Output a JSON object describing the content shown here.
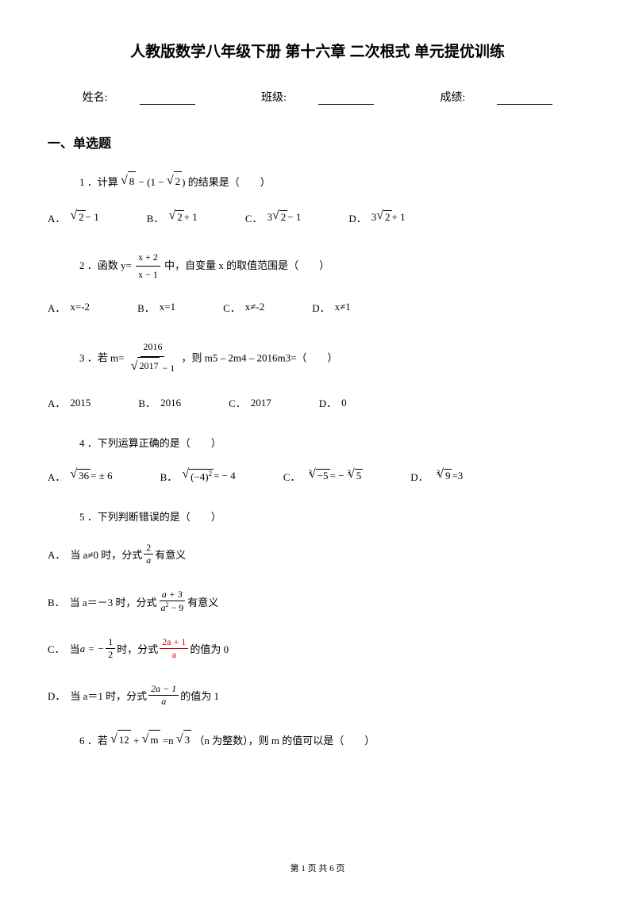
{
  "title": "人教版数学八年级下册 第十六章 二次根式 单元提优训练",
  "info": {
    "name_label": "姓名:",
    "class_label": "班级:",
    "score_label": "成绩:"
  },
  "section1_title": "一、单选题",
  "q1": {
    "prefix": "1 ．计算",
    "suffix": "的结果是（　　）",
    "sqrt_val": "8",
    "paren": "(1 − ",
    "paren_sqrt": "2",
    "paren_close": ")",
    "optA_label": "A．",
    "optA_sqrt": "2",
    "optA_suffix": " − 1",
    "optB_label": "B．",
    "optB_sqrt": "2",
    "optB_suffix": " + 1",
    "optC_label": "C．",
    "optC_prefix": "3",
    "optC_sqrt": "2",
    "optC_suffix": " − 1",
    "optD_label": "D．",
    "optD_prefix": "3",
    "optD_sqrt": "2",
    "optD_suffix": " + 1"
  },
  "q2": {
    "prefix": "2 ．函数 y= ",
    "frac_num": "x + 2",
    "frac_den": "x − 1",
    "suffix": " 中，自变量 x 的取值范围是（　　）",
    "optA_label": "A．",
    "optA": "x=-2",
    "optB_label": "B．",
    "optB": "x=1",
    "optC_label": "C．",
    "optC": "x≠-2",
    "optD_label": "D．",
    "optD": "x≠1"
  },
  "q3": {
    "prefix": "3 ．若 m=",
    "frac_num": "2016",
    "frac_den_sqrt": "2017",
    "frac_den_suffix": " − 1",
    "suffix": "，则 m5 – 2m4 – 2016m3=（　　）",
    "optA_label": "A．",
    "optA": "2015",
    "optB_label": "B．",
    "optB": "2016",
    "optC_label": "C．",
    "optC": "2017",
    "optD_label": "D．",
    "optD": "0"
  },
  "q4": {
    "text": "4 ．下列运算正确的是（　　）",
    "optA_label": "A．",
    "optA_sqrt": "36",
    "optA_suffix": "= ± 6",
    "optB_label": "B．",
    "optB_sqrt": "(−4)",
    "optB_sup": "2",
    "optB_suffix": " = − 4",
    "optC_label": "C．",
    "optC_idx": "3",
    "optC_sqrt": "−5",
    "optC_mid": " = −",
    "optC_idx2": "3",
    "optC_sqrt2": "5",
    "optD_label": "D．",
    "optD_idx": "3",
    "optD_sqrt": "9",
    "optD_suffix": "=3"
  },
  "q5": {
    "text": "5 ．下列判断错误的是（　　）",
    "optA_label": "A．",
    "optA_prefix": "当 a≠0 时，分式",
    "optA_num": "2",
    "optA_den": "a",
    "optA_suffix": "有意义",
    "optB_label": "B．",
    "optB_prefix": "当 a＝－3 时，分式",
    "optB_num": "a + 3",
    "optB_den": "a",
    "optB_den_sup": "2",
    "optB_den_suffix": " − 9",
    "optB_suffix": "有意义",
    "optC_label": "C．",
    "optC_prefix": "当 ",
    "optC_a": "a = −",
    "optC_frac_num": "1",
    "optC_frac_den": "2",
    "optC_mid": "时，分式",
    "optC_num": "2a + 1",
    "optC_den": "a",
    "optC_suffix": " 的值为 0",
    "optD_label": "D．",
    "optD_prefix": "当 a＝1 时，分式 ",
    "optD_num": "2a − 1",
    "optD_den": "a",
    "optD_suffix": "  的值为 1"
  },
  "q6": {
    "prefix": "6 ．若",
    "sqrt1": "12",
    "plus": "+",
    "sqrt2": "m",
    "eq": "=n",
    "sqrt3": "3",
    "suffix": "（n 为整数），则 m 的值可以是（　　）"
  },
  "footer": "第 1 页 共 6 页"
}
